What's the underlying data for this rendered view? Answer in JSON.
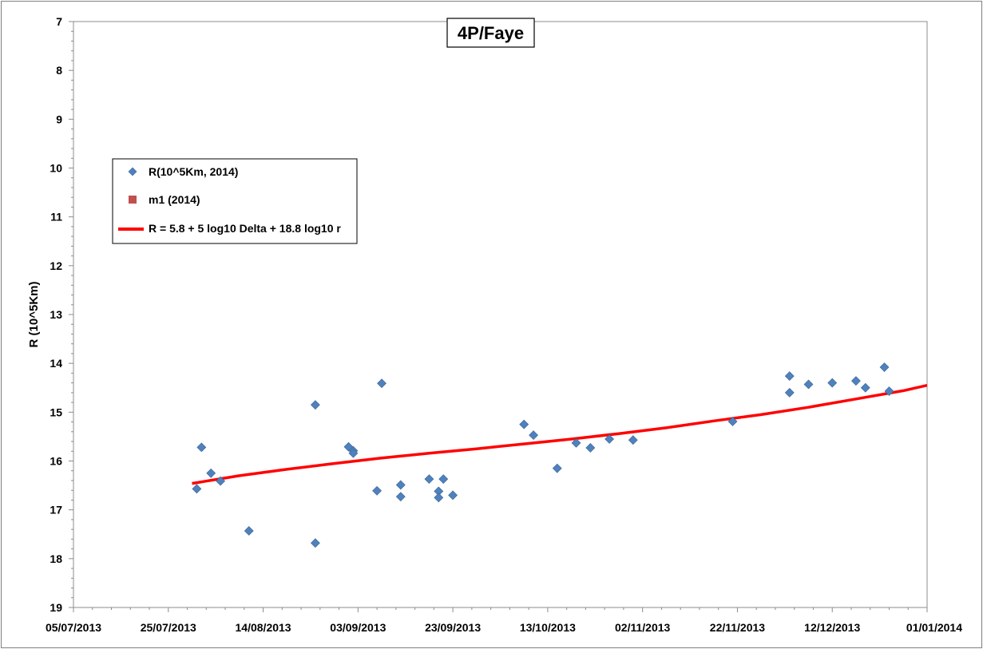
{
  "chart_data": {
    "type": "scatter",
    "title": "4P/Faye",
    "xlabel": "",
    "ylabel": "R (10^5Km)",
    "x_type": "date",
    "xlim": [
      "2013-07-05",
      "2014-01-01"
    ],
    "ylim": [
      7,
      19
    ],
    "y_inverted": true,
    "grid": false,
    "legend_position": "upper-left",
    "x_ticks": [
      "05/07/2013",
      "25/07/2013",
      "14/08/2013",
      "03/09/2013",
      "23/09/2013",
      "13/10/2013",
      "02/11/2013",
      "22/11/2013",
      "12/12/2013",
      "01/01/2014"
    ],
    "y_ticks": [
      7,
      8,
      9,
      10,
      11,
      12,
      13,
      14,
      15,
      16,
      17,
      18,
      19
    ],
    "series": [
      {
        "name": "R(10^5Km, 2014)",
        "kind": "scatter",
        "marker": "diamond",
        "color": "#4f81bd",
        "points": [
          [
            "2013-07-31",
            16.57
          ],
          [
            "2013-08-01",
            15.72
          ],
          [
            "2013-08-03",
            16.25
          ],
          [
            "2013-08-05",
            16.41
          ],
          [
            "2013-08-11",
            17.43
          ],
          [
            "2013-08-25",
            14.85
          ],
          [
            "2013-08-25",
            17.68
          ],
          [
            "2013-09-01",
            15.71
          ],
          [
            "2013-09-02",
            15.79
          ],
          [
            "2013-09-02",
            15.84
          ],
          [
            "2013-09-07",
            16.61
          ],
          [
            "2013-09-08",
            14.41
          ],
          [
            "2013-09-12",
            16.49
          ],
          [
            "2013-09-12",
            16.73
          ],
          [
            "2013-09-18",
            16.37
          ],
          [
            "2013-09-20",
            16.62
          ],
          [
            "2013-09-20",
            16.75
          ],
          [
            "2013-09-21",
            16.37
          ],
          [
            "2013-09-23",
            16.7
          ],
          [
            "2013-10-08",
            15.25
          ],
          [
            "2013-10-10",
            15.47
          ],
          [
            "2013-10-15",
            16.15
          ],
          [
            "2013-10-19",
            15.63
          ],
          [
            "2013-10-22",
            15.73
          ],
          [
            "2013-10-26",
            15.55
          ],
          [
            "2013-10-31",
            15.57
          ],
          [
            "2013-11-21",
            15.19
          ],
          [
            "2013-12-03",
            14.26
          ],
          [
            "2013-12-03",
            14.6
          ],
          [
            "2013-12-07",
            14.43
          ],
          [
            "2013-12-12",
            14.4
          ],
          [
            "2013-12-17",
            14.36
          ],
          [
            "2013-12-19",
            14.5
          ],
          [
            "2013-12-23",
            14.08
          ],
          [
            "2013-12-24",
            14.57
          ]
        ]
      },
      {
        "name": "m1 (2014)",
        "kind": "scatter",
        "marker": "square",
        "color": "#c0504d",
        "points": []
      },
      {
        "name": "R = 5.8 + 5 log10 Delta + 18.8 log10 r",
        "kind": "line",
        "color": "#ff0000",
        "points": [
          [
            "2013-07-30",
            16.46
          ],
          [
            "2013-08-09",
            16.3
          ],
          [
            "2013-08-19",
            16.17
          ],
          [
            "2013-08-29",
            16.05
          ],
          [
            "2013-09-08",
            15.94
          ],
          [
            "2013-09-18",
            15.84
          ],
          [
            "2013-09-28",
            15.75
          ],
          [
            "2013-10-08",
            15.65
          ],
          [
            "2013-10-18",
            15.55
          ],
          [
            "2013-10-28",
            15.44
          ],
          [
            "2013-11-07",
            15.32
          ],
          [
            "2013-11-17",
            15.18
          ],
          [
            "2013-11-27",
            15.05
          ],
          [
            "2013-12-07",
            14.9
          ],
          [
            "2013-12-17",
            14.73
          ],
          [
            "2013-12-27",
            14.56
          ],
          [
            "2014-01-01",
            14.45
          ]
        ]
      }
    ]
  }
}
